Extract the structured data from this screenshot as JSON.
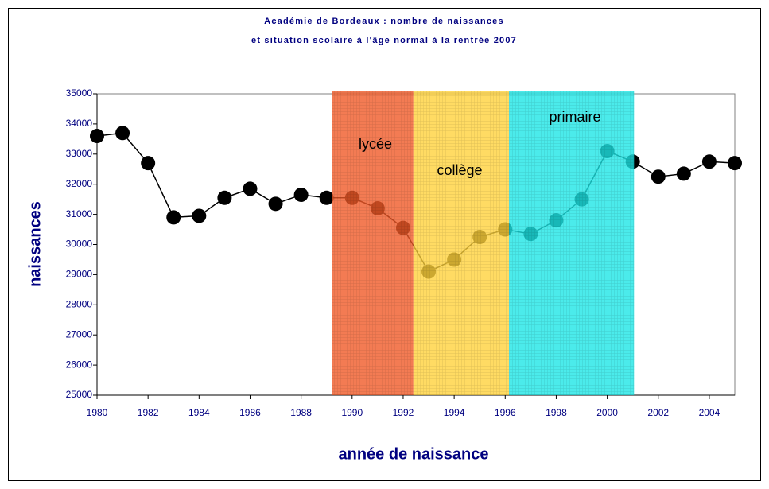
{
  "chart_data": {
    "type": "line",
    "title": [
      "Académie de Bordeaux : nombre de naissances",
      "et situation scolaire à l'âge normal à la rentrée 2007"
    ],
    "xlabel": "année de naissance",
    "ylabel": "naissances",
    "x": [
      1980,
      1981,
      1982,
      1983,
      1984,
      1985,
      1986,
      1987,
      1988,
      1989,
      1990,
      1991,
      1992,
      1993,
      1994,
      1995,
      1996,
      1997,
      1998,
      1999,
      2000,
      2001,
      2002,
      2003,
      2004,
      2005
    ],
    "values": [
      33600,
      33700,
      32700,
      30900,
      30950,
      31550,
      31850,
      31350,
      31650,
      31550,
      31550,
      31200,
      30550,
      29100,
      29500,
      30250,
      30500,
      30350,
      30800,
      31500,
      33100,
      32750,
      32250,
      32350,
      32750,
      32700
    ],
    "color": "#000000",
    "xlim": [
      1980,
      2005
    ],
    "xticks": [
      1980,
      1982,
      1984,
      1986,
      1988,
      1990,
      1992,
      1994,
      1996,
      1998,
      2000,
      2002,
      2004
    ],
    "ylim": [
      25000,
      35000
    ],
    "yticks": [
      25000,
      26000,
      27000,
      28000,
      29000,
      30000,
      31000,
      32000,
      33000,
      34000,
      35000
    ],
    "bands": [
      {
        "label": "lycée",
        "start": 1989.2,
        "end": 1992.4,
        "color": "#f05a28"
      },
      {
        "label": "collège",
        "start": 1992.4,
        "end": 1996.15,
        "color": "#ffd23c"
      },
      {
        "label": "primaire",
        "start": 1996.15,
        "end": 2001.05,
        "color": "#1ee6e6"
      }
    ]
  }
}
